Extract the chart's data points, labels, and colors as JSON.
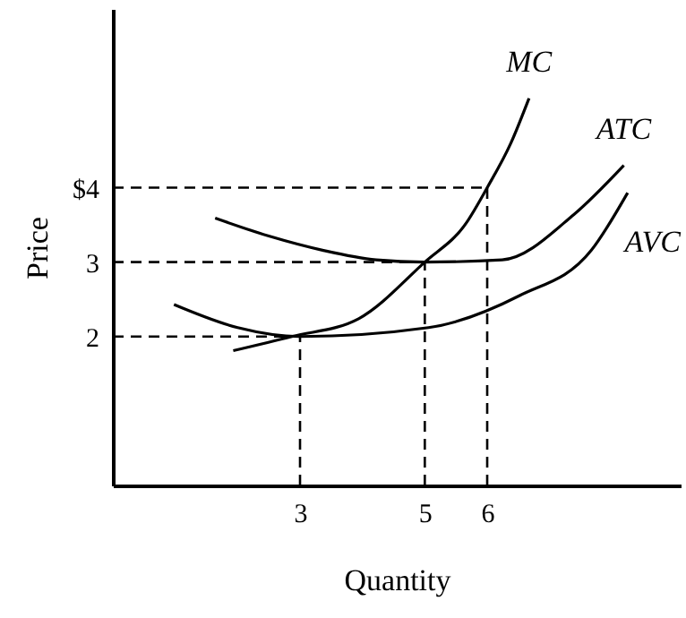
{
  "chart_data": {
    "type": "line",
    "xlabel": "Quantity",
    "ylabel": "Price",
    "xlim": [
      0,
      9.1
    ],
    "ylim": [
      0,
      6.4
    ],
    "xticks": [
      3,
      5,
      6
    ],
    "yticks": [
      {
        "value": 4,
        "label": "$4"
      },
      3,
      2
    ],
    "grid": false,
    "marker": "none",
    "line_style": "solid",
    "series": [
      {
        "name": "MC",
        "color": "#000000",
        "x": [
          1.93,
          2.87,
          3.94,
          5.0,
          5.66,
          6.0,
          6.38,
          6.67
        ],
        "values": [
          1.81,
          2.0,
          2.24,
          3.0,
          3.52,
          4.0,
          4.6,
          5.2
        ]
      },
      {
        "name": "ATC",
        "color": "#000000",
        "x": [
          1.64,
          2.5,
          3.36,
          4.22,
          5.0,
          6.24,
          7.39,
          8.19
        ],
        "values": [
          3.59,
          3.35,
          3.16,
          3.03,
          3.0,
          3.03,
          3.64,
          4.3
        ]
      },
      {
        "name": "AVC",
        "color": "#000000",
        "x": [
          0.98,
          2.0,
          3.0,
          5.06,
          6.52,
          7.67,
          8.25
        ],
        "values": [
          2.43,
          2.12,
          2.0,
          2.12,
          2.55,
          3.16,
          3.93
        ]
      }
    ],
    "ref_lines": [
      {
        "axis": "y",
        "value": 4,
        "line_style": "dashed"
      },
      {
        "axis": "x",
        "value": 6,
        "line_style": "dashed"
      },
      {
        "axis": "y",
        "value": 3,
        "line_style": "dashed"
      },
      {
        "axis": "x",
        "value": 5,
        "line_style": "dashed"
      },
      {
        "axis": "y",
        "value": 2,
        "line_style": "dashed"
      },
      {
        "axis": "x",
        "value": 3,
        "line_style": "dashed"
      }
    ]
  }
}
